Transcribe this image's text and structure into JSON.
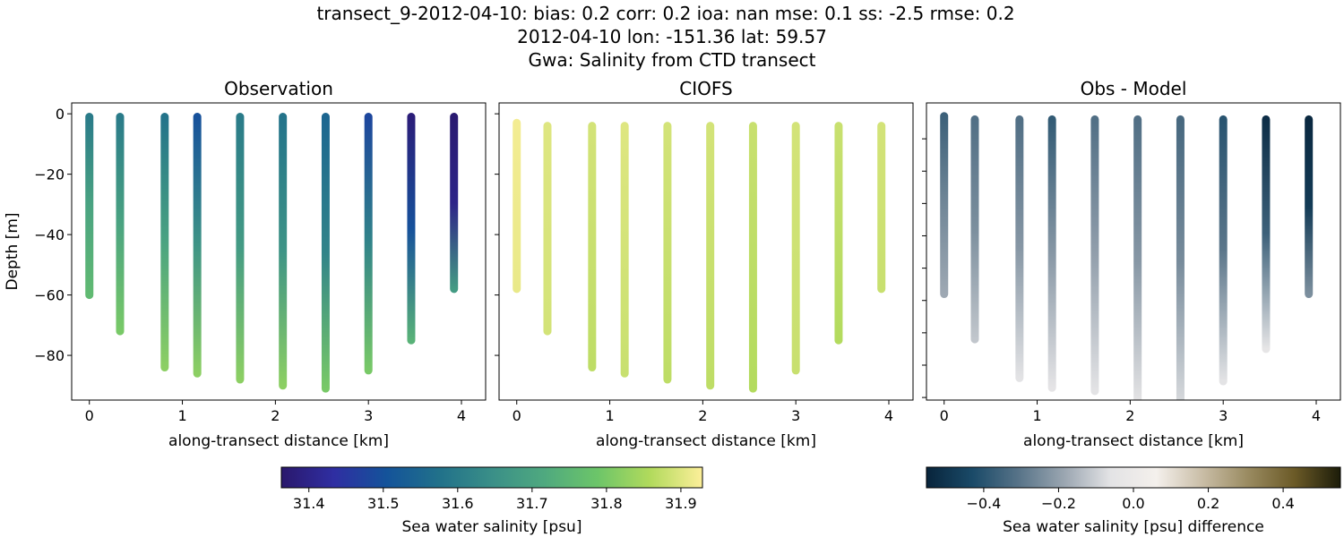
{
  "title_lines": [
    "transect_9-2012-04-10: bias: 0.2  corr: 0.2  ioa: nan  mse: 0.1  ss: -2.5  rmse: 0.2",
    "2012-04-10 lon: -151.36 lat: 59.57",
    "Gwa: Salinity from CTD transect"
  ],
  "chart_data": [
    {
      "type": "scatter",
      "title": "Observation",
      "xlabel": "along-transect distance [km]",
      "ylabel": "Depth [m]",
      "xlim": [
        -0.19,
        4.26
      ],
      "ylim": [
        -94.8,
        3.6
      ],
      "xticks": [
        0,
        1,
        2,
        3,
        4
      ],
      "yticks": [
        0,
        -20,
        -40,
        -60,
        -80
      ],
      "ytick_labels": [
        "0",
        "−20",
        "−40",
        "−60",
        "−80"
      ],
      "colormap": "haline",
      "columns": [
        {
          "x": 0.0,
          "top": -1,
          "bottom": -60,
          "values": [
            31.6,
            31.7,
            31.76
          ]
        },
        {
          "x": 0.33,
          "top": -1,
          "bottom": -72,
          "values": [
            31.6,
            31.7,
            31.8
          ]
        },
        {
          "x": 0.81,
          "top": -1,
          "bottom": -84,
          "values": [
            31.58,
            31.7,
            31.82
          ]
        },
        {
          "x": 1.16,
          "top": -1,
          "bottom": -86,
          "values": [
            31.5,
            31.66,
            31.82
          ]
        },
        {
          "x": 1.62,
          "top": -1,
          "bottom": -88,
          "values": [
            31.6,
            31.68,
            31.82
          ]
        },
        {
          "x": 2.08,
          "top": -1,
          "bottom": -90,
          "values": [
            31.58,
            31.66,
            31.82
          ]
        },
        {
          "x": 2.54,
          "top": -1,
          "bottom": -91,
          "values": [
            31.55,
            31.62,
            31.8
          ]
        },
        {
          "x": 3.0,
          "top": -1,
          "bottom": -85,
          "values": [
            31.48,
            31.62,
            31.8
          ]
        },
        {
          "x": 3.46,
          "top": -1,
          "bottom": -75,
          "values": [
            31.38,
            31.5,
            31.74
          ]
        },
        {
          "x": 3.92,
          "top": -1,
          "bottom": -58,
          "values": [
            31.37,
            31.4,
            31.68
          ]
        }
      ]
    },
    {
      "type": "scatter",
      "title": "CIOFS",
      "xlabel": "along-transect distance [km]",
      "xlim": [
        -0.19,
        4.26
      ],
      "ylim": [
        -94.8,
        3.6
      ],
      "xticks": [
        0,
        1,
        2,
        3,
        4
      ],
      "colormap": "haline",
      "columns": [
        {
          "x": 0.0,
          "top": -3,
          "bottom": -58,
          "values": [
            31.92,
            31.91
          ]
        },
        {
          "x": 0.33,
          "top": -4,
          "bottom": -72,
          "values": [
            31.9,
            31.89
          ]
        },
        {
          "x": 0.81,
          "top": -4,
          "bottom": -84,
          "values": [
            31.89,
            31.87
          ]
        },
        {
          "x": 1.16,
          "top": -4,
          "bottom": -86,
          "values": [
            31.9,
            31.88
          ]
        },
        {
          "x": 1.62,
          "top": -4,
          "bottom": -88,
          "values": [
            31.89,
            31.87
          ]
        },
        {
          "x": 2.08,
          "top": -4,
          "bottom": -90,
          "values": [
            31.89,
            31.87
          ]
        },
        {
          "x": 2.54,
          "top": -4,
          "bottom": -91,
          "values": [
            31.88,
            31.86
          ]
        },
        {
          "x": 3.0,
          "top": -4,
          "bottom": -85,
          "values": [
            31.89,
            31.88
          ]
        },
        {
          "x": 3.46,
          "top": -4,
          "bottom": -75,
          "values": [
            31.88,
            31.86
          ]
        },
        {
          "x": 3.92,
          "top": -4,
          "bottom": -58,
          "values": [
            31.89,
            31.88
          ]
        }
      ]
    },
    {
      "type": "scatter",
      "title": "Obs - Model",
      "xlabel": "along-transect distance [km]",
      "xlim": [
        -0.19,
        4.26
      ],
      "ylim": [
        -90.8,
        1.1
      ],
      "xticks": [
        0,
        1,
        2,
        3,
        4
      ],
      "yticks": [
        -10,
        -20,
        -30,
        -40,
        -50,
        -60,
        -70,
        -80,
        -90
      ],
      "colormap": "diff",
      "columns": [
        {
          "x": 0.0,
          "top": -3,
          "bottom": -58,
          "values": [
            -0.36,
            -0.26,
            -0.18
          ]
        },
        {
          "x": 0.33,
          "top": -4,
          "bottom": -72,
          "values": [
            -0.32,
            -0.24,
            -0.12
          ]
        },
        {
          "x": 0.81,
          "top": -4,
          "bottom": -84,
          "values": [
            -0.32,
            -0.22,
            -0.06
          ]
        },
        {
          "x": 1.16,
          "top": -4,
          "bottom": -87,
          "values": [
            -0.38,
            -0.22,
            -0.05
          ]
        },
        {
          "x": 1.62,
          "top": -4,
          "bottom": -88,
          "values": [
            -0.32,
            -0.2,
            -0.06
          ]
        },
        {
          "x": 2.08,
          "top": -4,
          "bottom": -92,
          "values": [
            -0.32,
            -0.22,
            -0.04
          ]
        },
        {
          "x": 2.54,
          "top": -4,
          "bottom": -92,
          "values": [
            -0.34,
            -0.25,
            -0.08
          ]
        },
        {
          "x": 3.0,
          "top": -4,
          "bottom": -85,
          "values": [
            -0.4,
            -0.3,
            -0.06
          ]
        },
        {
          "x": 3.46,
          "top": -4,
          "bottom": -75,
          "values": [
            -0.52,
            -0.36,
            -0.04
          ]
        },
        {
          "x": 3.92,
          "top": -4,
          "bottom": -58,
          "values": [
            -0.54,
            -0.48,
            -0.24
          ]
        }
      ]
    }
  ],
  "colorbars": [
    {
      "label": "Sea water salinity [psu]",
      "range": [
        31.363,
        31.929
      ],
      "ticks": [
        31.4,
        31.5,
        31.6,
        31.7,
        31.8,
        31.9
      ],
      "tick_labels": [
        "31.4",
        "31.5",
        "31.6",
        "31.7",
        "31.8",
        "31.9"
      ],
      "colormap": "haline",
      "colors": [
        "#2a186c",
        "#2f2ea2",
        "#14539a",
        "#21718a",
        "#3a8f88",
        "#4fa97f",
        "#6cc569",
        "#b1da5c",
        "#fdef9a"
      ]
    },
    {
      "label": "Sea water salinity [psu] difference",
      "range": [
        -0.553,
        0.553
      ],
      "ticks": [
        -0.4,
        -0.2,
        0.0,
        0.2,
        0.4
      ],
      "tick_labels": [
        "−0.4",
        "−0.2",
        "0.0",
        "0.2",
        "0.4"
      ],
      "colormap": "diff",
      "colors": [
        "#08243b",
        "#1a4a68",
        "#577388",
        "#9ba6b1",
        "#e3e3e5",
        "#f4f0ec",
        "#c9bda6",
        "#998a60",
        "#6b5a27",
        "#1c1c09"
      ]
    }
  ]
}
